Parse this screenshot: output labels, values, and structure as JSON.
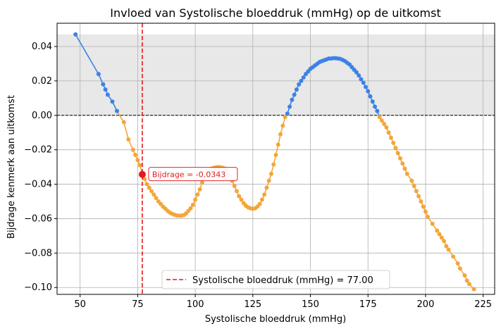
{
  "chart_data": {
    "type": "line",
    "title": "Invloed van Systolische bloeddruk (mmHg) op de uitkomst",
    "xlabel": "Systolische bloeddruk (mmHg)",
    "ylabel": "Bijdrage kenmerk aan uitkomst",
    "xlim": [
      40,
      230
    ],
    "ylim": [
      -0.104,
      0.0535
    ],
    "xticks": [
      50,
      75,
      100,
      125,
      150,
      175,
      200,
      225
    ],
    "xtick_labels": [
      "50",
      "75",
      "100",
      "125",
      "150",
      "175",
      "200",
      "225"
    ],
    "yticks": [
      -0.1,
      -0.08,
      -0.06,
      -0.04,
      -0.02,
      0.0,
      0.02,
      0.04
    ],
    "ytick_labels": [
      "−0.10",
      "−0.08",
      "−0.06",
      "−0.04",
      "−0.02",
      "0.00",
      "0.02",
      "0.04"
    ],
    "grid": true,
    "shaded_region": {
      "y_from": 0.0,
      "y_to": 0.047,
      "color": "#e8e8e8"
    },
    "zero_line": 0.0,
    "marked_value": {
      "x": 77.0,
      "y": -0.0343,
      "label": "Bijdrage = -0.0343",
      "legend_label": "Systolische bloeddruk (mmHg) = 77.00",
      "color": "#e31a1c"
    },
    "legend_position": "lower-center",
    "colors": {
      "positive": "#3b82e6",
      "negative": "#f4a63a",
      "marker": "#e31a1c"
    },
    "series": [
      {
        "x": [
          48,
          58,
          60,
          61,
          62,
          64,
          66,
          69,
          71,
          73,
          74,
          75,
          76,
          77,
          78,
          79,
          80,
          81,
          82,
          83,
          84,
          85,
          86,
          87,
          88,
          89,
          90,
          91,
          92,
          93,
          94,
          95,
          96,
          97,
          98,
          99,
          100,
          101,
          102,
          103,
          104,
          105,
          106,
          107,
          108,
          109,
          110,
          111,
          112,
          113,
          114,
          115,
          116,
          117,
          118,
          119,
          120,
          121,
          122,
          123,
          124,
          125,
          126,
          127,
          128,
          129,
          130,
          131,
          132,
          133,
          134,
          135,
          136,
          137,
          138,
          139,
          140,
          141,
          142,
          143,
          144,
          145,
          146,
          147,
          148,
          149,
          150,
          151,
          152,
          153,
          154,
          155,
          156,
          157,
          158,
          159,
          160,
          161,
          162,
          163,
          164,
          165,
          166,
          167,
          168,
          169,
          170,
          171,
          172,
          173,
          174,
          175,
          176,
          177,
          178,
          179,
          180,
          181,
          182,
          183,
          184,
          185,
          186,
          187,
          188,
          189,
          190,
          191,
          192,
          194,
          195,
          196,
          197,
          198,
          199,
          200,
          201,
          203,
          205,
          206,
          207,
          208,
          209,
          210,
          212,
          214,
          215,
          217,
          218,
          219,
          221
        ],
        "y": [
          0.047,
          0.024,
          0.018,
          0.015,
          0.012,
          0.008,
          0.0025,
          -0.004,
          -0.014,
          -0.02,
          -0.023,
          -0.026,
          -0.029,
          -0.0343,
          -0.037,
          -0.04,
          -0.042,
          -0.044,
          -0.046,
          -0.048,
          -0.05,
          -0.0515,
          -0.053,
          -0.0542,
          -0.0555,
          -0.0565,
          -0.0572,
          -0.0577,
          -0.0582,
          -0.0583,
          -0.0583,
          -0.058,
          -0.057,
          -0.0555,
          -0.054,
          -0.052,
          -0.049,
          -0.046,
          -0.043,
          -0.039,
          -0.036,
          -0.034,
          -0.032,
          -0.031,
          -0.0305,
          -0.0302,
          -0.03,
          -0.0302,
          -0.0305,
          -0.031,
          -0.0325,
          -0.035,
          -0.038,
          -0.041,
          -0.044,
          -0.047,
          -0.049,
          -0.051,
          -0.0525,
          -0.0535,
          -0.054,
          -0.0543,
          -0.054,
          -0.053,
          -0.0515,
          -0.049,
          -0.046,
          -0.042,
          -0.038,
          -0.034,
          -0.0285,
          -0.023,
          -0.017,
          -0.011,
          -0.006,
          -0.001,
          0.001,
          0.005,
          0.009,
          0.012,
          0.015,
          0.018,
          0.02,
          0.022,
          0.024,
          0.0255,
          0.027,
          0.028,
          0.029,
          0.03,
          0.031,
          0.0315,
          0.032,
          0.0325,
          0.033,
          0.033,
          0.0332,
          0.0332,
          0.033,
          0.0328,
          0.0322,
          0.0315,
          0.0305,
          0.0295,
          0.028,
          0.0265,
          0.025,
          0.0232,
          0.021,
          0.019,
          0.0165,
          0.014,
          0.011,
          0.008,
          0.005,
          0.0025,
          -0.001,
          -0.003,
          -0.005,
          -0.007,
          -0.01,
          -0.013,
          -0.016,
          -0.019,
          -0.022,
          -0.025,
          -0.028,
          -0.031,
          -0.034,
          -0.038,
          -0.041,
          -0.044,
          -0.047,
          -0.05,
          -0.053,
          -0.056,
          -0.059,
          -0.063,
          -0.067,
          -0.069,
          -0.071,
          -0.073,
          -0.076,
          -0.078,
          -0.082,
          -0.086,
          -0.089,
          -0.093,
          -0.096,
          -0.098,
          -0.101
        ]
      }
    ]
  }
}
